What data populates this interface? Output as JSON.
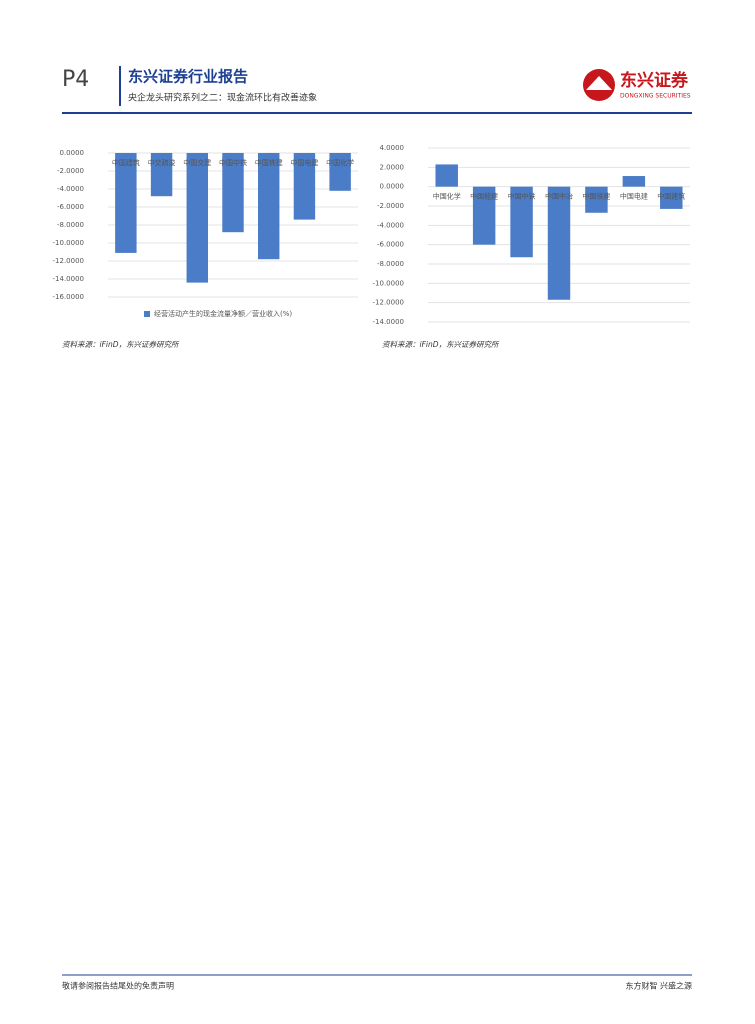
{
  "header": {
    "page": "P4",
    "title": "东兴证券行业报告",
    "subtitle": "央企龙头研究系列之二：现金流环比有改善迹象",
    "logo_cn": "东兴证券",
    "logo_en": "DONGXING SECURITIES"
  },
  "chart_data": [
    {
      "type": "bar",
      "categories": [
        "中国建筑",
        "中交疏浚",
        "中国交建",
        "中国中铁",
        "中国铁建",
        "中国电建",
        "中国化学"
      ],
      "series": [
        {
          "name": "经营活动产生的现金流量净额／营业收入(%)",
          "color": "#4a7cc7",
          "values": [
            -11.1,
            -4.8,
            -14.4,
            -8.8,
            -11.8,
            -7.4,
            -4.2
          ]
        }
      ],
      "ylim": [
        -16,
        0
      ],
      "yticks": [
        {
          "value": 0,
          "label": "0.0000"
        },
        {
          "value": -2,
          "label": "-2.0000"
        },
        {
          "value": -4,
          "label": "-4.0000"
        },
        {
          "value": -6,
          "label": "-6.0000"
        },
        {
          "value": -8,
          "label": "-8.0000"
        },
        {
          "value": -10,
          "label": "-10.0000"
        },
        {
          "value": -12,
          "label": "-12.0000"
        },
        {
          "value": -14,
          "label": "-14.0000"
        },
        {
          "value": -16,
          "label": "-16.0000"
        }
      ],
      "grid": true,
      "legend": "bottom",
      "source": "资料来源：iFinD，东兴证券研究所"
    },
    {
      "type": "bar",
      "categories": [
        "中国化学",
        "中国能建",
        "中国中铁",
        "中国中冶",
        "中国铁建",
        "中国电建",
        "中国建筑"
      ],
      "values": [
        2.3,
        -6.0,
        -7.3,
        -11.7,
        -2.7,
        1.1,
        -2.3
      ],
      "color": "#4a7cc7",
      "ylim": [
        -14,
        4
      ],
      "yticks": [
        {
          "value": 4,
          "label": "4.0000"
        },
        {
          "value": 2,
          "label": "2.0000"
        },
        {
          "value": 0,
          "label": "0.0000"
        },
        {
          "value": -2,
          "label": "-2.0000"
        },
        {
          "value": -4,
          "label": "-4.0000"
        },
        {
          "value": -6,
          "label": "-6.0000"
        },
        {
          "value": -8,
          "label": "-8.0000"
        },
        {
          "value": -10,
          "label": "-10.0000"
        },
        {
          "value": -12,
          "label": "-12.0000"
        },
        {
          "value": -14,
          "label": "-14.0000"
        }
      ],
      "grid": true,
      "source": "资料来源：iFinD，东兴证券研究所"
    }
  ],
  "footer": {
    "left": "敬请参阅报告结尾处的免责声明",
    "right": "东方财智 兴盛之源"
  }
}
